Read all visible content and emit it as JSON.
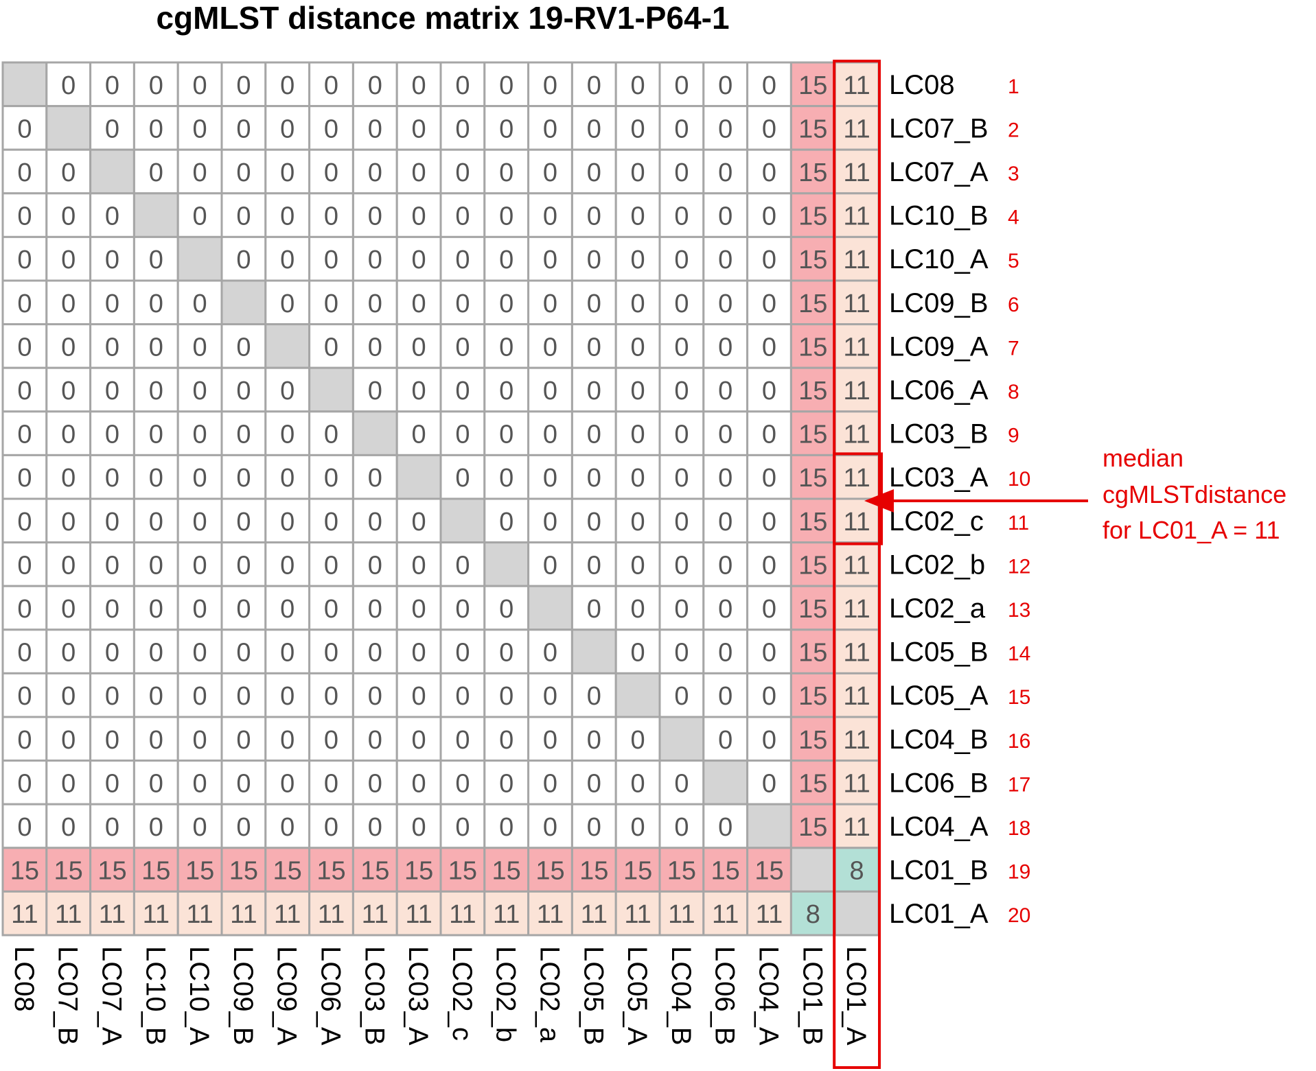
{
  "title": "cgMLST distance matrix 19-RV1-P64-1",
  "chart_data": {
    "type": "heatmap",
    "title": "cgMLST distance matrix 19-RV1-P64-1",
    "row_labels": [
      "LC08",
      "LC07_B",
      "LC07_A",
      "LC10_B",
      "LC10_A",
      "LC09_B",
      "LC09_A",
      "LC06_A",
      "LC03_B",
      "LC03_A",
      "LC02_c",
      "LC02_b",
      "LC02_a",
      "LC05_B",
      "LC05_A",
      "LC04_B",
      "LC06_B",
      "LC04_A",
      "LC01_B",
      "LC01_A"
    ],
    "row_numbers": [
      "1",
      "2",
      "3",
      "4",
      "5",
      "6",
      "7",
      "8",
      "9",
      "10",
      "11",
      "12",
      "13",
      "14",
      "15",
      "16",
      "17",
      "18",
      "19",
      "20"
    ],
    "column_labels": [
      "LC08",
      "LC07_B",
      "LC07_A",
      "LC10_B",
      "LC10_A",
      "LC09_B",
      "LC09_A",
      "LC06_A",
      "LC03_B",
      "LC03_A",
      "LC02_c",
      "LC02_b",
      "LC02_a",
      "LC05_B",
      "LC05_A",
      "LC04_B",
      "LC06_B",
      "LC04_A",
      "LC01_B",
      "LC01_A"
    ],
    "matrix": [
      [
        null,
        0,
        0,
        0,
        0,
        0,
        0,
        0,
        0,
        0,
        0,
        0,
        0,
        0,
        0,
        0,
        0,
        0,
        15,
        11
      ],
      [
        0,
        null,
        0,
        0,
        0,
        0,
        0,
        0,
        0,
        0,
        0,
        0,
        0,
        0,
        0,
        0,
        0,
        0,
        15,
        11
      ],
      [
        0,
        0,
        null,
        0,
        0,
        0,
        0,
        0,
        0,
        0,
        0,
        0,
        0,
        0,
        0,
        0,
        0,
        0,
        15,
        11
      ],
      [
        0,
        0,
        0,
        null,
        0,
        0,
        0,
        0,
        0,
        0,
        0,
        0,
        0,
        0,
        0,
        0,
        0,
        0,
        15,
        11
      ],
      [
        0,
        0,
        0,
        0,
        null,
        0,
        0,
        0,
        0,
        0,
        0,
        0,
        0,
        0,
        0,
        0,
        0,
        0,
        15,
        11
      ],
      [
        0,
        0,
        0,
        0,
        0,
        null,
        0,
        0,
        0,
        0,
        0,
        0,
        0,
        0,
        0,
        0,
        0,
        0,
        15,
        11
      ],
      [
        0,
        0,
        0,
        0,
        0,
        0,
        null,
        0,
        0,
        0,
        0,
        0,
        0,
        0,
        0,
        0,
        0,
        0,
        15,
        11
      ],
      [
        0,
        0,
        0,
        0,
        0,
        0,
        0,
        null,
        0,
        0,
        0,
        0,
        0,
        0,
        0,
        0,
        0,
        0,
        15,
        11
      ],
      [
        0,
        0,
        0,
        0,
        0,
        0,
        0,
        0,
        null,
        0,
        0,
        0,
        0,
        0,
        0,
        0,
        0,
        0,
        15,
        11
      ],
      [
        0,
        0,
        0,
        0,
        0,
        0,
        0,
        0,
        0,
        null,
        0,
        0,
        0,
        0,
        0,
        0,
        0,
        0,
        15,
        11
      ],
      [
        0,
        0,
        0,
        0,
        0,
        0,
        0,
        0,
        0,
        0,
        null,
        0,
        0,
        0,
        0,
        0,
        0,
        0,
        15,
        11
      ],
      [
        0,
        0,
        0,
        0,
        0,
        0,
        0,
        0,
        0,
        0,
        0,
        null,
        0,
        0,
        0,
        0,
        0,
        0,
        15,
        11
      ],
      [
        0,
        0,
        0,
        0,
        0,
        0,
        0,
        0,
        0,
        0,
        0,
        0,
        null,
        0,
        0,
        0,
        0,
        0,
        15,
        11
      ],
      [
        0,
        0,
        0,
        0,
        0,
        0,
        0,
        0,
        0,
        0,
        0,
        0,
        0,
        null,
        0,
        0,
        0,
        0,
        15,
        11
      ],
      [
        0,
        0,
        0,
        0,
        0,
        0,
        0,
        0,
        0,
        0,
        0,
        0,
        0,
        0,
        null,
        0,
        0,
        0,
        15,
        11
      ],
      [
        0,
        0,
        0,
        0,
        0,
        0,
        0,
        0,
        0,
        0,
        0,
        0,
        0,
        0,
        0,
        null,
        0,
        0,
        15,
        11
      ],
      [
        0,
        0,
        0,
        0,
        0,
        0,
        0,
        0,
        0,
        0,
        0,
        0,
        0,
        0,
        0,
        0,
        null,
        0,
        15,
        11
      ],
      [
        0,
        0,
        0,
        0,
        0,
        0,
        0,
        0,
        0,
        0,
        0,
        0,
        0,
        0,
        0,
        0,
        0,
        null,
        15,
        11
      ],
      [
        15,
        15,
        15,
        15,
        15,
        15,
        15,
        15,
        15,
        15,
        15,
        15,
        15,
        15,
        15,
        15,
        15,
        15,
        null,
        8
      ],
      [
        11,
        11,
        11,
        11,
        11,
        11,
        11,
        11,
        11,
        11,
        11,
        11,
        11,
        11,
        11,
        11,
        11,
        11,
        8,
        null
      ]
    ],
    "colors": {
      "diagonal": "#d4d4d4",
      "value_0": "#ffffff",
      "value_8": "#b3e0d6",
      "value_11": "#fbe3d7",
      "value_15": "#f7aeb2",
      "grid": "#a6a6a6",
      "highlight": "#e60000"
    },
    "highlight_column": "LC01_A",
    "highlight_rows": [
      "LC03_A",
      "LC02_c"
    ],
    "annotation": {
      "lines": [
        "median",
        "cgMLSTdistance",
        "for LC01_A = 11"
      ],
      "arrow_target": "LC01_A median cells"
    }
  }
}
